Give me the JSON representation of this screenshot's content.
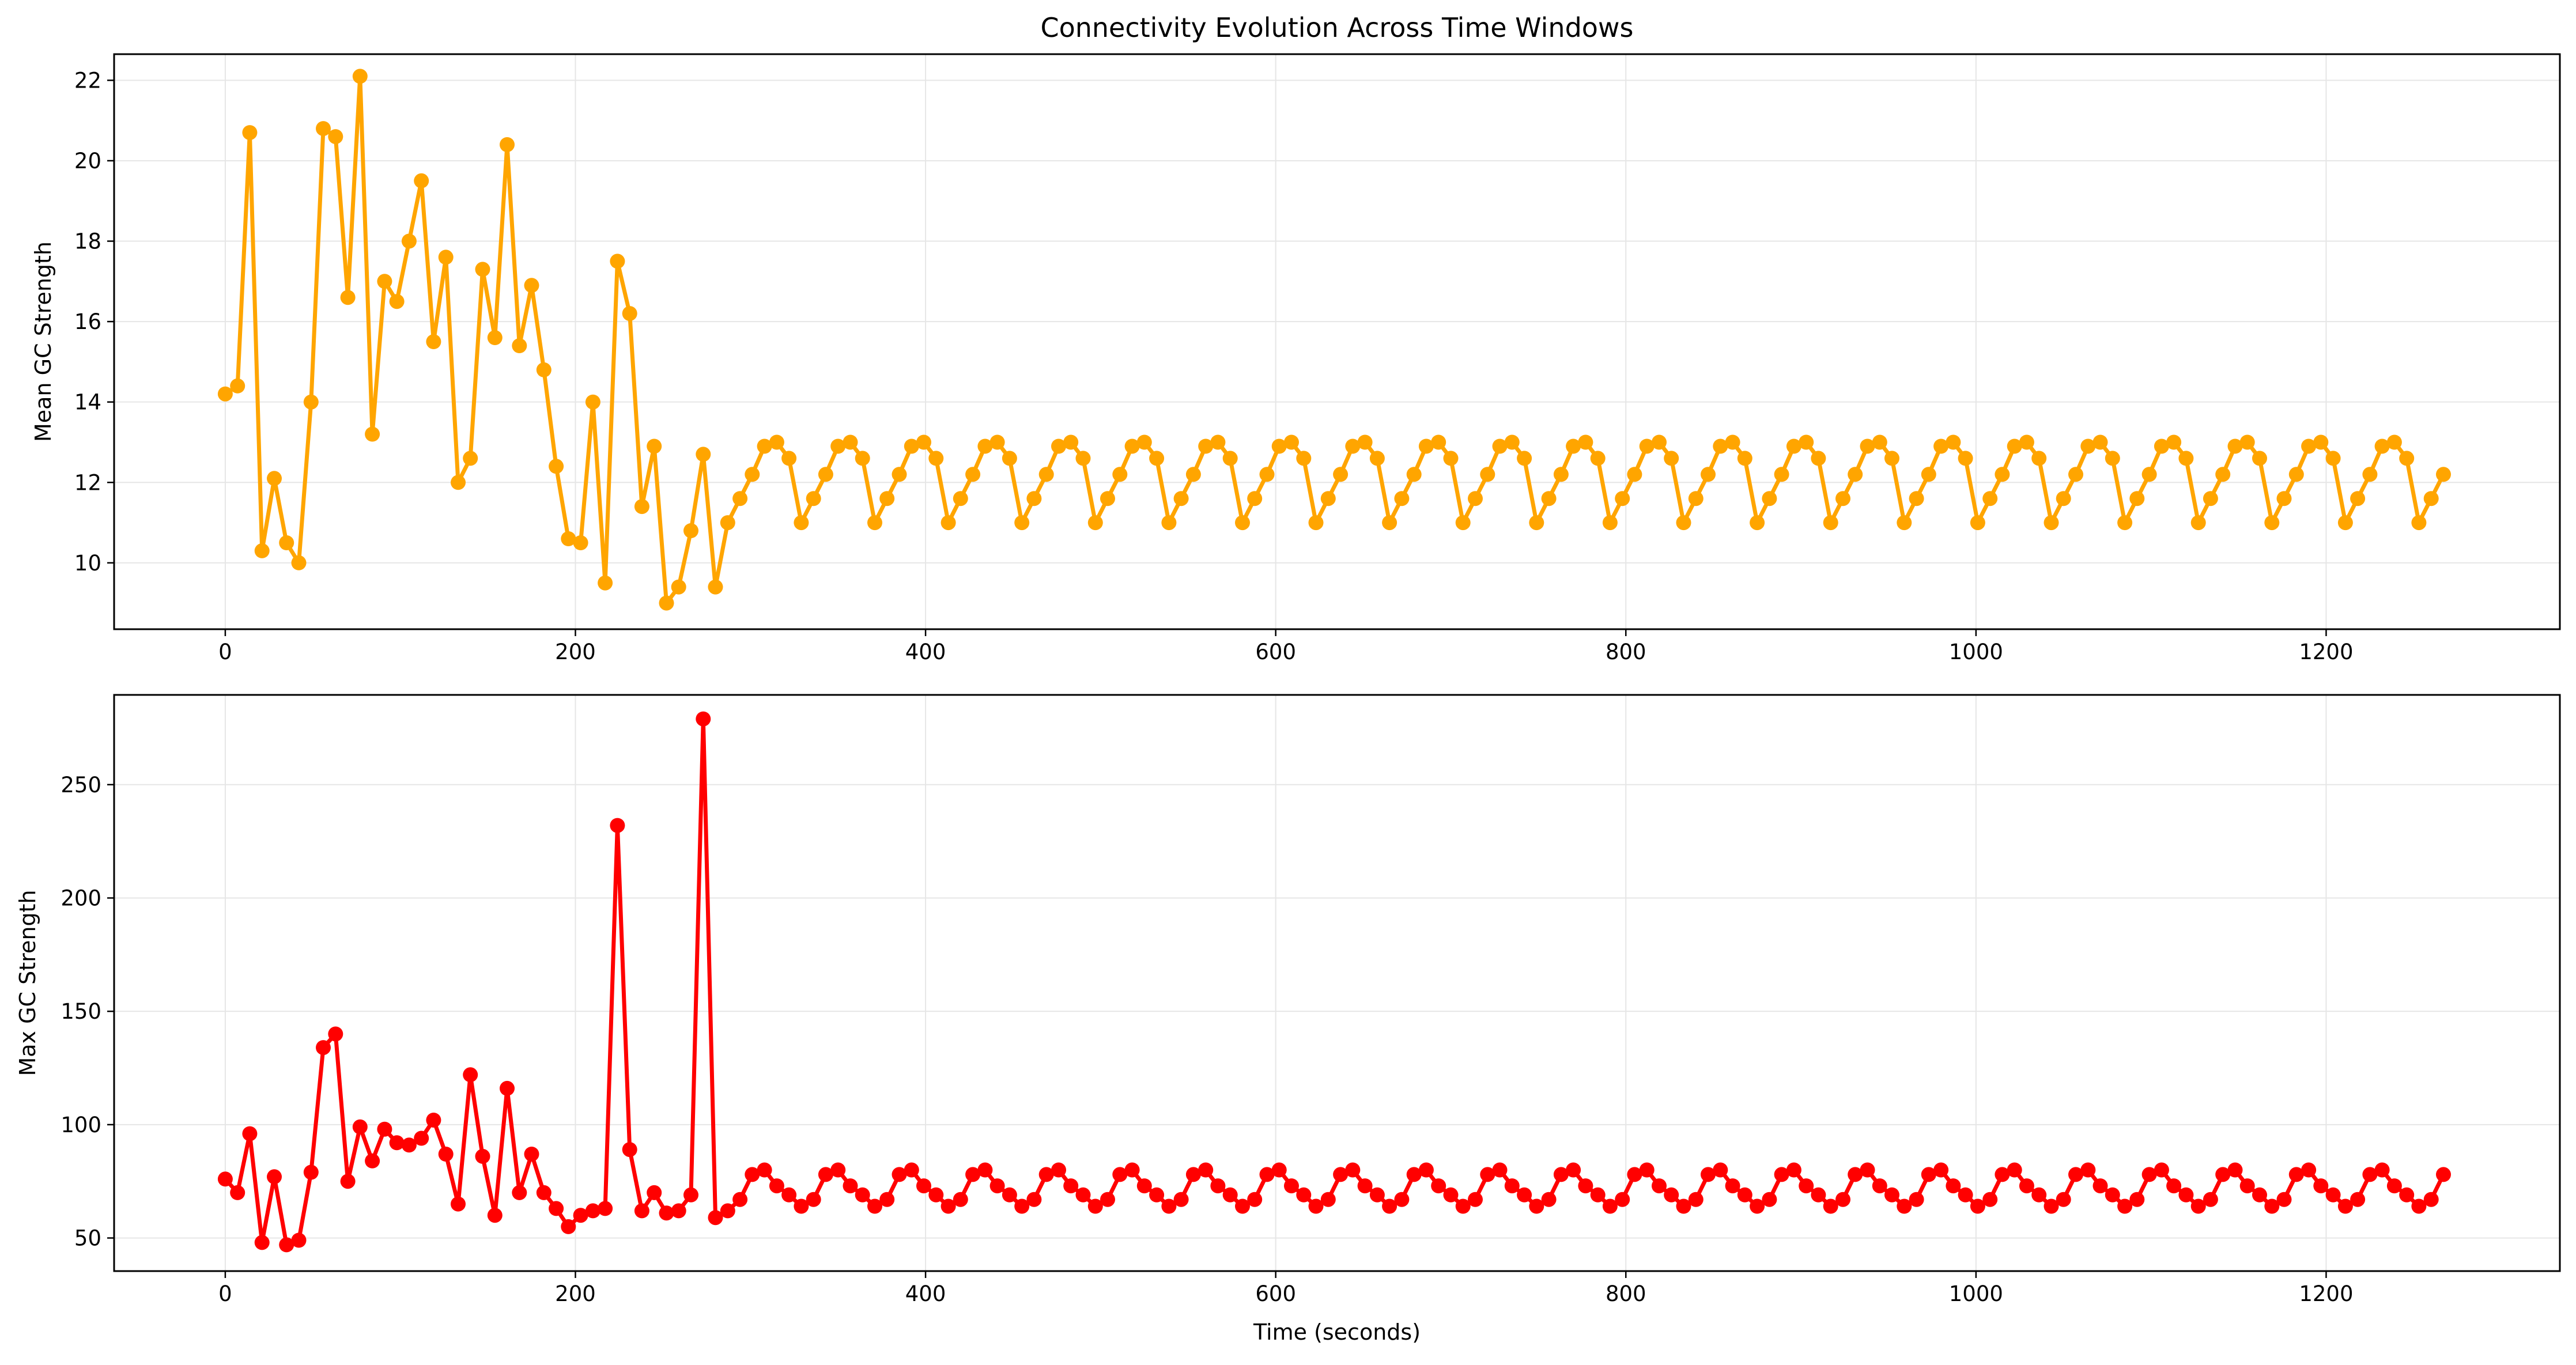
{
  "colors": {
    "mean": "#FFA500",
    "max": "#FF0000",
    "grid": "#e6e6e6",
    "axes": "#000000"
  },
  "chart_data": [
    {
      "type": "line",
      "title": "Connectivity Evolution Across Time Windows",
      "xlabel": "",
      "ylabel": "Mean GC Strength",
      "xlim": [
        -63.5,
        1333.5
      ],
      "ylim": [
        8.35,
        22.65
      ],
      "xticks": [
        0,
        200,
        400,
        600,
        800,
        1000,
        1200
      ],
      "xtick_labels": [
        "0",
        "200",
        "400",
        "600",
        "800",
        "1000",
        "1200"
      ],
      "yticks": [
        10,
        12,
        14,
        16,
        18,
        20,
        22
      ],
      "ytick_labels": [
        "10",
        "12",
        "14",
        "16",
        "18",
        "20",
        "22"
      ],
      "grid": true,
      "x_start": 0,
      "x_step": 7,
      "series": [
        {
          "color": "#FFA500",
          "values": [
            14.2,
            14.4,
            20.7,
            10.3,
            12.1,
            10.5,
            10.0,
            14.0,
            20.8,
            20.6,
            16.6,
            22.1,
            13.2,
            17.0,
            16.5,
            18.0,
            19.5,
            15.5,
            17.6,
            12.0,
            12.6,
            17.3,
            15.6,
            20.4,
            15.4,
            16.9,
            14.8,
            12.4,
            10.6,
            10.5,
            14.0,
            9.5,
            17.5,
            16.2,
            11.4,
            12.9,
            9.0,
            9.4,
            10.8,
            12.7,
            9.4,
            11.0,
            11.6,
            12.2,
            12.9,
            13.0,
            12.6,
            11.0,
            11.6,
            12.2,
            12.9,
            13.0,
            12.6,
            11.0,
            11.6,
            12.2,
            12.9,
            13.0,
            12.6,
            11.0,
            11.6,
            12.2,
            12.9,
            13.0,
            12.6,
            11.0,
            11.6,
            12.2,
            12.9,
            13.0,
            12.6,
            11.0,
            11.6,
            12.2,
            12.9,
            13.0,
            12.6,
            11.0,
            11.6,
            12.2,
            12.9,
            13.0,
            12.6,
            11.0,
            11.6,
            12.2,
            12.9,
            13.0,
            12.6,
            11.0,
            11.6,
            12.2,
            12.9,
            13.0,
            12.6,
            11.0,
            11.6,
            12.2,
            12.9,
            13.0,
            12.6,
            11.0,
            11.6,
            12.2,
            12.9,
            13.0,
            12.6,
            11.0,
            11.6,
            12.2,
            12.9,
            13.0,
            12.6,
            11.0,
            11.6,
            12.2,
            12.9,
            13.0,
            12.6,
            11.0,
            11.6,
            12.2,
            12.9,
            13.0,
            12.6,
            11.0,
            11.6,
            12.2,
            12.9,
            13.0,
            12.6,
            11.0,
            11.6,
            12.2,
            12.9,
            13.0,
            12.6,
            11.0,
            11.6,
            12.2,
            12.9,
            13.0,
            12.6,
            11.0,
            11.6,
            12.2,
            12.9,
            13.0,
            12.6,
            11.0,
            11.6,
            12.2,
            12.9,
            13.0,
            12.6,
            11.0,
            11.6,
            12.2,
            12.9,
            13.0,
            12.6,
            11.0,
            11.6,
            12.2,
            12.9,
            13.0,
            12.6,
            11.0,
            11.6,
            12.2,
            12.9,
            13.0,
            12.6,
            11.0,
            11.6,
            12.2,
            12.9,
            13.0,
            12.6,
            11.0,
            11.6,
            12.2
          ]
        }
      ]
    },
    {
      "type": "line",
      "title": "",
      "xlabel": "Time (seconds)",
      "ylabel": "Max GC Strength",
      "xlim": [
        -63.5,
        1333.5
      ],
      "ylim": [
        35.4,
        289.6
      ],
      "xticks": [
        0,
        200,
        400,
        600,
        800,
        1000,
        1200
      ],
      "xtick_labels": [
        "0",
        "200",
        "400",
        "600",
        "800",
        "1000",
        "1200"
      ],
      "yticks": [
        50,
        100,
        150,
        200,
        250
      ],
      "ytick_labels": [
        "50",
        "100",
        "150",
        "200",
        "250"
      ],
      "grid": true,
      "x_start": 0,
      "x_step": 7,
      "series": [
        {
          "color": "#FF0000",
          "values": [
            76,
            70,
            96,
            48,
            77,
            47,
            49,
            79,
            134,
            140,
            75,
            99,
            84,
            98,
            92,
            91,
            94,
            102,
            87,
            65,
            122,
            86,
            60,
            116,
            70,
            87,
            70,
            63,
            55,
            60,
            62,
            63,
            232,
            89,
            62,
            70,
            61,
            62,
            69,
            279,
            59,
            62,
            67,
            78,
            80,
            73,
            69,
            64,
            67,
            78,
            80,
            73,
            69,
            64,
            67,
            78,
            80,
            73,
            69,
            64,
            67,
            78,
            80,
            73,
            69,
            64,
            67,
            78,
            80,
            73,
            69,
            64,
            67,
            78,
            80,
            73,
            69,
            64,
            67,
            78,
            80,
            73,
            69,
            64,
            67,
            78,
            80,
            73,
            69,
            64,
            67,
            78,
            80,
            73,
            69,
            64,
            67,
            78,
            80,
            73,
            69,
            64,
            67,
            78,
            80,
            73,
            69,
            64,
            67,
            78,
            80,
            73,
            69,
            64,
            67,
            78,
            80,
            73,
            69,
            64,
            67,
            78,
            80,
            73,
            69,
            64,
            67,
            78,
            80,
            73,
            69,
            64,
            67,
            78,
            80,
            73,
            69,
            64,
            67,
            78,
            80,
            73,
            69,
            64,
            67,
            78,
            80,
            73,
            69,
            64,
            67,
            78,
            80,
            73,
            69,
            64,
            67,
            78,
            80,
            73,
            69,
            64,
            67,
            78,
            80,
            73,
            69,
            64,
            67,
            78,
            80,
            73,
            69,
            64,
            67,
            78,
            80,
            73,
            69,
            64,
            67,
            78
          ]
        }
      ]
    }
  ]
}
